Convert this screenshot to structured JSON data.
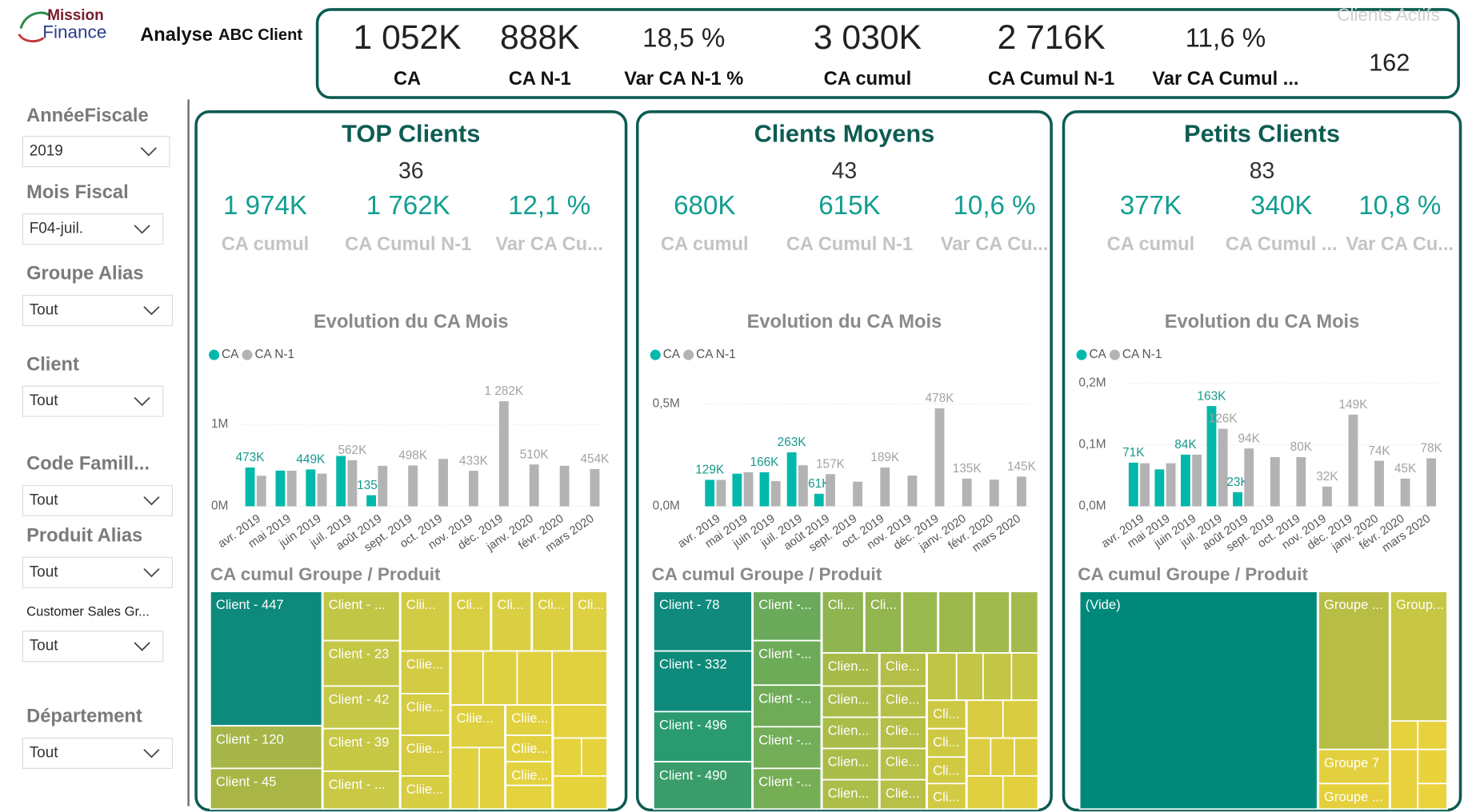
{
  "header": {
    "logo": [
      "Mission",
      "Finance"
    ],
    "title": "Analyse",
    "subtitle": "ABC Client"
  },
  "kpis": [
    {
      "value": "1 052K",
      "label": "CA"
    },
    {
      "value": "888K",
      "label": "CA N-1"
    },
    {
      "value": "18,5 %",
      "label": "Var CA N-1 %"
    },
    {
      "value": "3 030K",
      "label": "CA cumul"
    },
    {
      "value": "2 716K",
      "label": "CA Cumul N-1"
    },
    {
      "value": "11,6 %",
      "label": "Var CA Cumul ..."
    },
    {
      "value": "162",
      "label": "Clients Actifs"
    }
  ],
  "filters": [
    {
      "label": "AnnéeFiscale",
      "value": "2019"
    },
    {
      "label": "Mois Fiscal",
      "value": "F04-juil."
    },
    {
      "label": "Groupe Alias",
      "value": "Tout"
    },
    {
      "label": "Client",
      "value": "Tout"
    },
    {
      "label": "Code Famill...",
      "value": "Tout"
    },
    {
      "label": "Produit Alias",
      "value": "Tout"
    },
    {
      "label": "Customer Sales Gr...",
      "value": "Tout"
    },
    {
      "label": "Département",
      "value": "Tout"
    }
  ],
  "panels": [
    {
      "title": "TOP Clients",
      "count": "36",
      "kpis": [
        {
          "value": "1 974K",
          "label": "CA cumul"
        },
        {
          "value": "1 762K",
          "label": "CA Cumul N-1"
        },
        {
          "value": "12,1 %",
          "label": "Var CA Cu..."
        }
      ],
      "chart": {
        "type": "bar",
        "title": "Evolution du CA Mois",
        "categories": [
          "avr. 2019",
          "mai 2019",
          "juin 2019",
          "juil. 2019",
          "août 2019",
          "sept. 2019",
          "oct. 2019",
          "nov. 2019",
          "déc. 2019",
          "janv. 2020",
          "févr. 2020",
          "mars 2020"
        ],
        "series": [
          {
            "name": "CA",
            "color": "#01b8aa",
            "values": [
              473000,
              435000,
              449000,
              614000,
              135000,
              null,
              null,
              null,
              null,
              null,
              null,
              null
            ],
            "value_labels": [
              "473K",
              null,
              "449K",
              null,
              "135K",
              null,
              null,
              null,
              null,
              null,
              null,
              null
            ]
          },
          {
            "name": "CA N-1",
            "color": "#b3b3b3",
            "values": [
              373000,
              434000,
              398000,
              562000,
              494000,
              498000,
              578000,
              433000,
              1282000,
              510000,
              494000,
              454000
            ],
            "value_labels": [
              null,
              null,
              null,
              "562K",
              null,
              "498K",
              null,
              "433K",
              "1 282K",
              "510K",
              null,
              "454K"
            ]
          }
        ],
        "ylim": [
          0,
          1500000
        ],
        "yticks": [
          {
            "value": 0,
            "label": "0M"
          },
          {
            "value": 1000000,
            "label": "1M"
          }
        ],
        "grid": true
      },
      "treemap": {
        "title": "CA cumul Groupe / Produit",
        "labels": [
          "Client - 447",
          "Client - 120",
          "Client - 45",
          "Client - ...",
          "Client - 23",
          "Client - 42",
          "Client - 39",
          "Client - ...",
          "Clii...",
          "Cliie...",
          "Cliie...",
          "Cliie...",
          "Cliie...",
          "Cli...",
          "Cli...",
          "Cli...",
          "Cli...",
          "Cliie...",
          "Cliie...",
          "Cliie...",
          "Cliie..."
        ]
      }
    },
    {
      "title": "Clients Moyens",
      "count": "43",
      "kpis": [
        {
          "value": "680K",
          "label": "CA cumul"
        },
        {
          "value": "615K",
          "label": "CA Cumul N-1"
        },
        {
          "value": "10,6 %",
          "label": "Var CA Cu..."
        }
      ],
      "chart": {
        "type": "bar",
        "title": "Evolution du CA Mois",
        "categories": [
          "avr. 2019",
          "mai 2019",
          "juin 2019",
          "juil. 2019",
          "août 2019",
          "sept. 2019",
          "oct. 2019",
          "nov. 2019",
          "déc. 2019",
          "janv. 2020",
          "févr. 2020",
          "mars 2020"
        ],
        "series": [
          {
            "name": "CA",
            "color": "#01b8aa",
            "values": [
              129000,
              159000,
              166000,
              263000,
              61000,
              null,
              null,
              null,
              null,
              null,
              null,
              null
            ],
            "value_labels": [
              "129K",
              null,
              "166K",
              "263K",
              "61K",
              null,
              null,
              null,
              null,
              null,
              null,
              null
            ]
          },
          {
            "name": "CA N-1",
            "color": "#b3b3b3",
            "values": [
              129000,
              166000,
              123000,
              200000,
              157000,
              120000,
              189000,
              150000,
              478000,
              135000,
              130000,
              145000
            ],
            "value_labels": [
              null,
              null,
              null,
              null,
              "157K",
              null,
              "189K",
              null,
              "478K",
              "135K",
              null,
              "145K"
            ]
          }
        ],
        "ylim": [
          0,
          600000
        ],
        "yticks": [
          {
            "value": 0,
            "label": "0,0M"
          },
          {
            "value": 500000,
            "label": "0,5M"
          }
        ],
        "grid": true
      },
      "treemap": {
        "title": "CA cumul Groupe / Produit",
        "labels": [
          "Client - 78",
          "Client - 332",
          "Client - 496",
          "Client - 490",
          "Client -...",
          "Client -...",
          "Client -...",
          "Client -...",
          "Client -...",
          "Cli...",
          "Cli...",
          "Clien...",
          "Clien...",
          "Clien...",
          "Clien...",
          "Clien...",
          "Clie...",
          "Clie...",
          "Clie...",
          "Clie...",
          "Clie...",
          "Cli...",
          "Cli...",
          "Cli...",
          "Cli..."
        ]
      }
    },
    {
      "title": "Petits Clients",
      "count": "83",
      "kpis": [
        {
          "value": "377K",
          "label": "CA cumul"
        },
        {
          "value": "340K",
          "label": "CA Cumul ..."
        },
        {
          "value": "10,8 %",
          "label": "Var CA Cu..."
        }
      ],
      "chart": {
        "type": "bar",
        "title": "Evolution du CA Mois",
        "categories": [
          "avr. 2019",
          "mai 2019",
          "juin 2019",
          "juil. 2019",
          "août 2019",
          "sept. 2019",
          "oct. 2019",
          "nov. 2019",
          "déc. 2019",
          "janv. 2020",
          "févr. 2020",
          "mars 2020"
        ],
        "series": [
          {
            "name": "CA",
            "color": "#01b8aa",
            "values": [
              71000,
              60000,
              84000,
              163000,
              23000,
              null,
              null,
              null,
              null,
              null,
              null,
              null
            ],
            "value_labels": [
              "71K",
              null,
              "84K",
              "163K",
              "23K",
              null,
              null,
              null,
              null,
              null,
              null,
              null
            ]
          },
          {
            "name": "CA N-1",
            "color": "#b3b3b3",
            "values": [
              70000,
              70000,
              84000,
              126000,
              94000,
              80000,
              80000,
              32000,
              149000,
              74000,
              45000,
              78000
            ],
            "value_labels": [
              null,
              null,
              null,
              "126K",
              "94K",
              null,
              "80K",
              "32K",
              "149K",
              "74K",
              "45K",
              "78K"
            ]
          }
        ],
        "ylim": [
          0,
          200000
        ],
        "yticks": [
          {
            "value": 0,
            "label": "0,0M"
          },
          {
            "value": 100000,
            "label": "0,1M"
          },
          {
            "value": 200000,
            "label": "0,2M"
          }
        ],
        "grid": true
      },
      "treemap": {
        "title": "CA cumul Groupe / Produit",
        "labels": [
          "(Vide)",
          "Groupe ...",
          "Group...",
          "Groupe 7",
          "Groupe ..."
        ]
      }
    }
  ]
}
